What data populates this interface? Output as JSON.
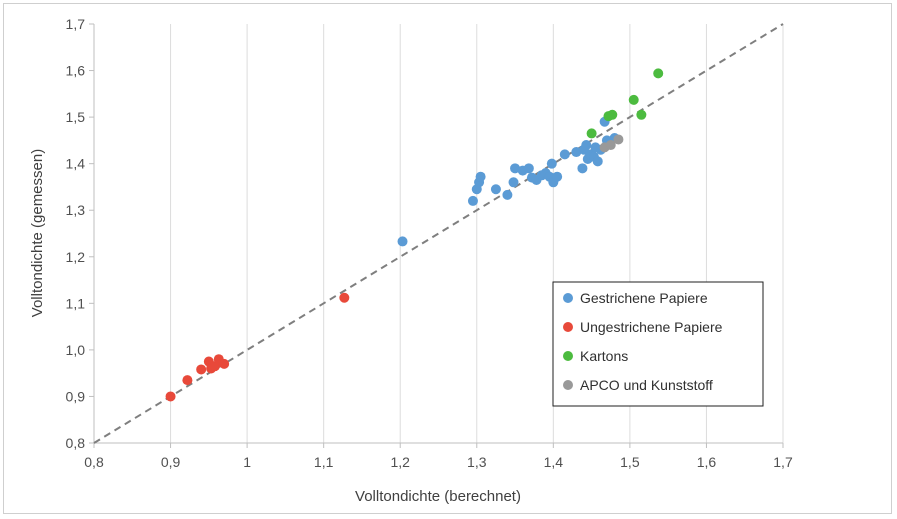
{
  "chart_data": {
    "type": "scatter",
    "xlabel": "Volltondichte (berechnet)",
    "ylabel": "Volltondichte (gemessen)",
    "xlim": [
      0.8,
      1.7
    ],
    "ylim": [
      0.8,
      1.7
    ],
    "x_ticks": [
      "0,8",
      "0,9",
      "1",
      "1,1",
      "1,2",
      "1,3",
      "1,4",
      "1,5",
      "1,6",
      "1,7"
    ],
    "y_ticks": [
      "0,8",
      "0,9",
      "1,0",
      "1,1",
      "1,2",
      "1,3",
      "1,4",
      "1,5",
      "1,6",
      "1,7"
    ],
    "grid": "vertical",
    "legend_position": "bottom-right",
    "reference_line": {
      "type": "dashed",
      "from": [
        0.8,
        0.8
      ],
      "to": [
        1.7,
        1.7
      ],
      "color": "#7f7f7f"
    },
    "series": [
      {
        "name": "Gestrichene Papiere",
        "color": "#5b9bd5",
        "points": [
          [
            1.203,
            1.233
          ],
          [
            1.295,
            1.32
          ],
          [
            1.3,
            1.345
          ],
          [
            1.303,
            1.36
          ],
          [
            1.305,
            1.372
          ],
          [
            1.325,
            1.345
          ],
          [
            1.34,
            1.333
          ],
          [
            1.348,
            1.36
          ],
          [
            1.35,
            1.39
          ],
          [
            1.36,
            1.385
          ],
          [
            1.368,
            1.39
          ],
          [
            1.372,
            1.37
          ],
          [
            1.378,
            1.365
          ],
          [
            1.385,
            1.375
          ],
          [
            1.39,
            1.38
          ],
          [
            1.395,
            1.372
          ],
          [
            1.398,
            1.4
          ],
          [
            1.4,
            1.36
          ],
          [
            1.405,
            1.372
          ],
          [
            1.415,
            1.42
          ],
          [
            1.43,
            1.425
          ],
          [
            1.438,
            1.39
          ],
          [
            1.44,
            1.43
          ],
          [
            1.443,
            1.44
          ],
          [
            1.445,
            1.41
          ],
          [
            1.448,
            1.42
          ],
          [
            1.453,
            1.415
          ],
          [
            1.455,
            1.435
          ],
          [
            1.458,
            1.405
          ],
          [
            1.462,
            1.43
          ],
          [
            1.467,
            1.49
          ],
          [
            1.47,
            1.45
          ],
          [
            1.48,
            1.455
          ]
        ]
      },
      {
        "name": "Ungestrichene Papiere",
        "color": "#e8493a",
        "points": [
          [
            0.9,
            0.9
          ],
          [
            0.922,
            0.935
          ],
          [
            0.94,
            0.958
          ],
          [
            0.95,
            0.975
          ],
          [
            0.953,
            0.96
          ],
          [
            0.958,
            0.965
          ],
          [
            0.963,
            0.98
          ],
          [
            0.97,
            0.97
          ],
          [
            1.127,
            1.112
          ]
        ]
      },
      {
        "name": "Kartons",
        "color": "#4cbb3f",
        "points": [
          [
            1.45,
            1.465
          ],
          [
            1.472,
            1.502
          ],
          [
            1.477,
            1.505
          ],
          [
            1.505,
            1.537
          ],
          [
            1.515,
            1.505
          ],
          [
            1.537,
            1.594
          ]
        ]
      },
      {
        "name": "APCO und Kunststoff",
        "color": "#999999",
        "points": [
          [
            1.467,
            1.435
          ],
          [
            1.475,
            1.44
          ],
          [
            1.485,
            1.452
          ]
        ]
      }
    ]
  }
}
